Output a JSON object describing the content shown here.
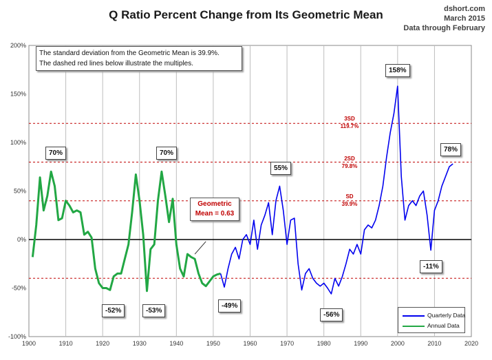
{
  "header": {
    "title": "Q Ratio Percent Change from Its Geometric Mean",
    "source_line1": "dshort.com",
    "source_line2": "March 2015",
    "source_line3": "Data through February"
  },
  "note": {
    "line1": "The standard deviation from the Geometric Mean is 39.9%.",
    "line2": "The dashed red lines below illustrate the multiples."
  },
  "geometric_mean_label": {
    "line1": "Geometric",
    "line2": "Mean = 0.63"
  },
  "sd_labels": [
    {
      "name": "3SD",
      "value": "119.7%"
    },
    {
      "name": "2SD",
      "value": "79.8%"
    },
    {
      "name": "SD",
      "value": "39.9%"
    }
  ],
  "callouts": [
    "70%",
    "70%",
    "55%",
    "158%",
    "78%",
    "-52%",
    "-53%",
    "-49%",
    "-56%",
    "-11%"
  ],
  "legend": {
    "quarterly": "Quarterly Data",
    "annual": "Annual Data"
  },
  "colors": {
    "quarterly": "#0000ee",
    "annual": "#22a744",
    "sd_lines": "#c00000",
    "zero_line": "#000000",
    "grid": "#bdbdbd"
  },
  "chart_data": {
    "type": "line",
    "title": "Q Ratio Percent Change from Its Geometric Mean",
    "xlabel": "",
    "ylabel": "",
    "xlim": [
      1900,
      2020
    ],
    "ylim": [
      -100,
      200
    ],
    "x_ticks": [
      "1900",
      "1910",
      "1920",
      "1930",
      "1940",
      "1950",
      "1960",
      "1970",
      "1980",
      "1990",
      "2000",
      "2010",
      "2020"
    ],
    "y_ticks": [
      "200%",
      "150%",
      "100%",
      "50%",
      "0%",
      "-50%",
      "-100%"
    ],
    "sd_lines": [
      119.7,
      79.8,
      39.9,
      -39.9
    ],
    "grid": "vertical",
    "legend_position": "bottom-right",
    "series": [
      {
        "name": "Annual Data",
        "x": [
          1901,
          1902,
          1903,
          1904,
          1905,
          1906,
          1907,
          1908,
          1909,
          1910,
          1911,
          1912,
          1913,
          1914,
          1915,
          1916,
          1917,
          1918,
          1919,
          1920,
          1921,
          1922,
          1923,
          1924,
          1925,
          1926,
          1927,
          1928,
          1929,
          1930,
          1931,
          1932,
          1933,
          1934,
          1935,
          1936,
          1937,
          1938,
          1939,
          1940,
          1941,
          1942,
          1943,
          1944,
          1945,
          1946,
          1947,
          1948,
          1949,
          1950,
          1951,
          1952
        ],
        "values": [
          -18,
          15,
          64,
          30,
          45,
          70,
          55,
          20,
          22,
          40,
          35,
          28,
          30,
          28,
          5,
          8,
          2,
          -30,
          -45,
          -50,
          -50,
          -52,
          -38,
          -35,
          -35,
          -20,
          -5,
          28,
          67,
          40,
          5,
          -53,
          -10,
          -5,
          40,
          70,
          45,
          18,
          42,
          -5,
          -30,
          -38,
          -15,
          -18,
          -20,
          -35,
          -45,
          -48,
          -43,
          -38,
          -36,
          -35
        ]
      },
      {
        "name": "Quarterly Data",
        "x": [
          1952,
          1953,
          1954,
          1955,
          1956,
          1957,
          1958,
          1959,
          1960,
          1961,
          1962,
          1963,
          1964,
          1965,
          1966,
          1967,
          1968,
          1969,
          1970,
          1971,
          1972,
          1973,
          1974,
          1975,
          1976,
          1977,
          1978,
          1979,
          1980,
          1981,
          1982,
          1983,
          1984,
          1985,
          1986,
          1987,
          1988,
          1989,
          1990,
          1991,
          1992,
          1993,
          1994,
          1995,
          1996,
          1997,
          1998,
          1999,
          2000,
          2001,
          2002,
          2003,
          2004,
          2005,
          2006,
          2007,
          2008,
          2009,
          2010,
          2011,
          2012,
          2013,
          2014,
          2015
        ],
        "values": [
          -35,
          -49,
          -30,
          -15,
          -8,
          -20,
          0,
          5,
          -5,
          20,
          -10,
          15,
          25,
          38,
          5,
          40,
          55,
          30,
          -5,
          20,
          22,
          -25,
          -52,
          -35,
          -30,
          -40,
          -45,
          -48,
          -45,
          -50,
          -56,
          -40,
          -48,
          -38,
          -25,
          -10,
          -15,
          -5,
          -15,
          10,
          15,
          12,
          20,
          35,
          55,
          85,
          110,
          130,
          158,
          65,
          20,
          35,
          40,
          35,
          45,
          50,
          25,
          -11,
          30,
          40,
          55,
          65,
          75,
          78
        ]
      }
    ]
  }
}
